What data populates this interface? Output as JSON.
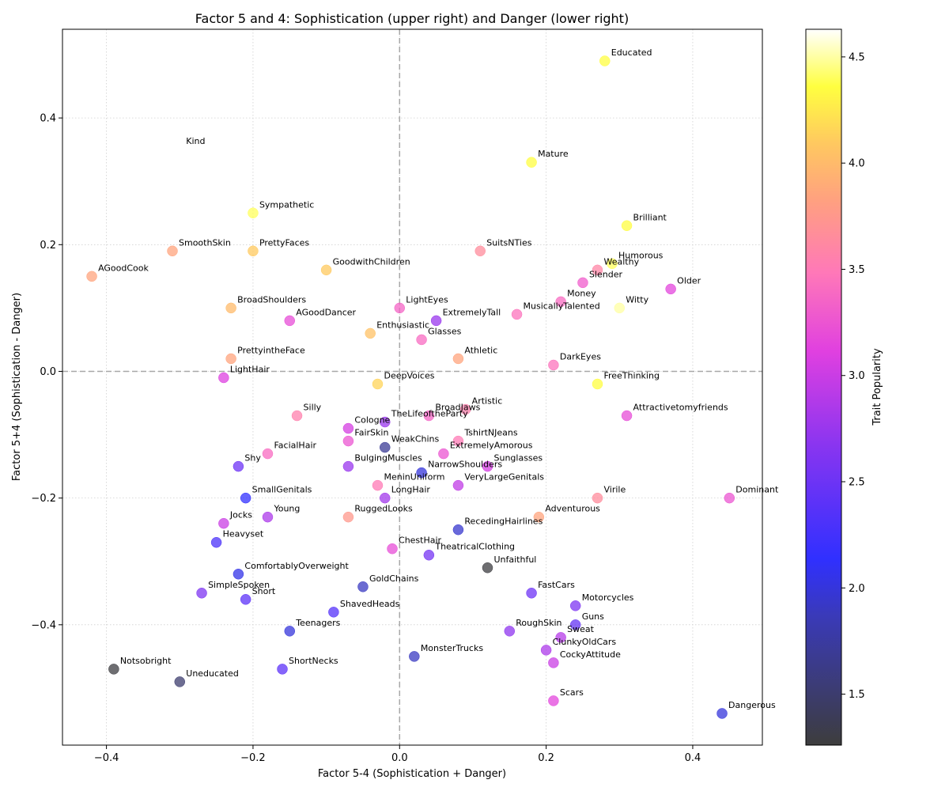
{
  "chart_data": {
    "type": "scatter",
    "title": "Factor 5 and 4: Sophistication (upper right) and Danger (lower right)",
    "xlabel": "Factor 5-4 (Sophistication + Danger)",
    "ylabel": "Factor 5+4 (Sophistication - Danger)",
    "xlim": [
      -0.46,
      0.495
    ],
    "ylim": [
      -0.59,
      0.54
    ],
    "xticks": [
      -0.4,
      -0.2,
      0.0,
      0.2,
      0.4
    ],
    "yticks": [
      -0.4,
      -0.2,
      0.0,
      0.2,
      0.4
    ],
    "xtick_labels": [
      "−0.4",
      "−0.2",
      "0.0",
      "0.2",
      "0.4"
    ],
    "ytick_labels": [
      "−0.4",
      "−0.2",
      "0.0",
      "0.2",
      "0.4"
    ],
    "grid": true,
    "reference_lines": {
      "x": 0,
      "y": 0
    },
    "colorbar": {
      "label": "Trait Popularity",
      "range": [
        1.26,
        4.63
      ],
      "ticks": [
        1.5,
        2.0,
        2.5,
        3.0,
        3.5,
        4.0,
        4.5
      ],
      "tick_labels": [
        "1.5",
        "2.0",
        "2.5",
        "3.0",
        "3.5",
        "4.0",
        "4.5"
      ],
      "colormap": "gnuplot2-like: black, blue, purple, magenta, salmon, orange, yellow, white"
    },
    "points": [
      {
        "label": "Educated",
        "x": 0.28,
        "y": 0.49,
        "c": 4.35
      },
      {
        "label": "Kind",
        "x": -0.3,
        "y": 0.35,
        "c": 4.63
      },
      {
        "label": "Mature",
        "x": 0.18,
        "y": 0.33,
        "c": 4.35
      },
      {
        "label": "Sympathetic",
        "x": -0.2,
        "y": 0.25,
        "c": 4.4
      },
      {
        "label": "Brilliant",
        "x": 0.31,
        "y": 0.23,
        "c": 4.35
      },
      {
        "label": "SmoothSkin",
        "x": -0.31,
        "y": 0.19,
        "c": 3.85
      },
      {
        "label": "PrettyFaces",
        "x": -0.2,
        "y": 0.19,
        "c": 4.1
      },
      {
        "label": "SuitsNTies",
        "x": 0.11,
        "y": 0.19,
        "c": 3.65
      },
      {
        "label": "Humorous",
        "x": 0.29,
        "y": 0.17,
        "c": 4.4
      },
      {
        "label": "Wealthy",
        "x": 0.27,
        "y": 0.16,
        "c": 3.6
      },
      {
        "label": "GoodwithChildren",
        "x": -0.1,
        "y": 0.16,
        "c": 4.1
      },
      {
        "label": "AGoodCook",
        "x": -0.42,
        "y": 0.15,
        "c": 3.85
      },
      {
        "label": "Slender",
        "x": 0.25,
        "y": 0.14,
        "c": 3.3
      },
      {
        "label": "Older",
        "x": 0.37,
        "y": 0.13,
        "c": 3.15
      },
      {
        "label": "Money",
        "x": 0.22,
        "y": 0.11,
        "c": 3.4
      },
      {
        "label": "Witty",
        "x": 0.3,
        "y": 0.1,
        "c": 4.5
      },
      {
        "label": "BroadShoulders",
        "x": -0.23,
        "y": 0.1,
        "c": 4.0
      },
      {
        "label": "LightEyes",
        "x": 0.0,
        "y": 0.1,
        "c": 3.35
      },
      {
        "label": "MusicallyTalented",
        "x": 0.16,
        "y": 0.09,
        "c": 3.45
      },
      {
        "label": "AGoodDancer",
        "x": -0.15,
        "y": 0.08,
        "c": 3.2
      },
      {
        "label": "ExtremelyTall",
        "x": 0.05,
        "y": 0.08,
        "c": 2.75
      },
      {
        "label": "Enthusiastic",
        "x": -0.04,
        "y": 0.06,
        "c": 4.05
      },
      {
        "label": "Glasses",
        "x": 0.03,
        "y": 0.05,
        "c": 3.4
      },
      {
        "label": "PrettyintheFace",
        "x": -0.23,
        "y": 0.02,
        "c": 3.85
      },
      {
        "label": "Athletic",
        "x": 0.08,
        "y": 0.02,
        "c": 3.85
      },
      {
        "label": "DarkEyes",
        "x": 0.21,
        "y": 0.01,
        "c": 3.45
      },
      {
        "label": "LightHair",
        "x": -0.24,
        "y": -0.01,
        "c": 3.1
      },
      {
        "label": "DeepVoices",
        "x": -0.03,
        "y": -0.02,
        "c": 4.15
      },
      {
        "label": "FreeThinking",
        "x": 0.27,
        "y": -0.02,
        "c": 4.35
      },
      {
        "label": "Artistic",
        "x": 0.09,
        "y": -0.06,
        "c": 3.55
      },
      {
        "label": "Silly",
        "x": -0.14,
        "y": -0.07,
        "c": 3.55
      },
      {
        "label": "BroadJaws",
        "x": 0.04,
        "y": -0.07,
        "c": 3.35
      },
      {
        "label": "Attractivetomyfriends",
        "x": 0.31,
        "y": -0.07,
        "c": 3.2
      },
      {
        "label": "TheLifeoftheParty",
        "x": -0.02,
        "y": -0.08,
        "c": 2.75
      },
      {
        "label": "Cologne",
        "x": -0.07,
        "y": -0.09,
        "c": 3.05
      },
      {
        "label": "FairSkin",
        "x": -0.07,
        "y": -0.11,
        "c": 3.25
      },
      {
        "label": "TshirtNJeans",
        "x": 0.08,
        "y": -0.11,
        "c": 3.5
      },
      {
        "label": "WeakChins",
        "x": -0.02,
        "y": -0.12,
        "c": 1.7
      },
      {
        "label": "FacialHair",
        "x": -0.18,
        "y": -0.13,
        "c": 3.4
      },
      {
        "label": "ExtremelyAmorous",
        "x": 0.06,
        "y": -0.13,
        "c": 3.25
      },
      {
        "label": "Shy",
        "x": -0.22,
        "y": -0.15,
        "c": 2.5
      },
      {
        "label": "BulgingMuscles",
        "x": -0.07,
        "y": -0.15,
        "c": 2.75
      },
      {
        "label": "Sunglasses",
        "x": 0.12,
        "y": -0.15,
        "c": 3.05
      },
      {
        "label": "NarrowShoulders",
        "x": 0.03,
        "y": -0.16,
        "c": 2.0
      },
      {
        "label": "MeninUniform",
        "x": -0.03,
        "y": -0.18,
        "c": 3.5
      },
      {
        "label": "VeryLargeGenitals",
        "x": 0.08,
        "y": -0.18,
        "c": 2.95
      },
      {
        "label": "SmallGenitals",
        "x": -0.21,
        "y": -0.2,
        "c": 2.15
      },
      {
        "label": "LongHair",
        "x": -0.02,
        "y": -0.2,
        "c": 2.8
      },
      {
        "label": "Virile",
        "x": 0.27,
        "y": -0.2,
        "c": 3.65
      },
      {
        "label": "Dominant",
        "x": 0.45,
        "y": -0.2,
        "c": 3.25
      },
      {
        "label": "Young",
        "x": -0.18,
        "y": -0.23,
        "c": 2.85
      },
      {
        "label": "RuggedLooks",
        "x": -0.07,
        "y": -0.23,
        "c": 3.75
      },
      {
        "label": "Adventurous",
        "x": 0.19,
        "y": -0.23,
        "c": 3.85
      },
      {
        "label": "Jocks",
        "x": -0.24,
        "y": -0.24,
        "c": 3.0
      },
      {
        "label": "RecedingHairlines",
        "x": 0.08,
        "y": -0.25,
        "c": 1.95
      },
      {
        "label": "Heavyset",
        "x": -0.25,
        "y": -0.27,
        "c": 2.3
      },
      {
        "label": "ChestHair",
        "x": -0.01,
        "y": -0.28,
        "c": 3.2
      },
      {
        "label": "TheatricalClothing",
        "x": 0.04,
        "y": -0.29,
        "c": 2.55
      },
      {
        "label": "Unfaithful",
        "x": 0.12,
        "y": -0.31,
        "c": 1.28
      },
      {
        "label": "ComfortablyOverweight",
        "x": -0.22,
        "y": -0.32,
        "c": 2.05
      },
      {
        "label": "GoldChains",
        "x": -0.05,
        "y": -0.34,
        "c": 1.9
      },
      {
        "label": "SimpleSpoken",
        "x": -0.27,
        "y": -0.35,
        "c": 2.6
      },
      {
        "label": "FastCars",
        "x": 0.18,
        "y": -0.35,
        "c": 2.5
      },
      {
        "label": "Short",
        "x": -0.21,
        "y": -0.36,
        "c": 2.4
      },
      {
        "label": "Motorcycles",
        "x": 0.24,
        "y": -0.37,
        "c": 2.6
      },
      {
        "label": "ShavedHeads",
        "x": -0.09,
        "y": -0.38,
        "c": 2.35
      },
      {
        "label": "Guns",
        "x": 0.24,
        "y": -0.4,
        "c": 2.45
      },
      {
        "label": "Teenagers",
        "x": -0.15,
        "y": -0.41,
        "c": 2.0
      },
      {
        "label": "RoughSkin",
        "x": 0.15,
        "y": -0.41,
        "c": 2.7
      },
      {
        "label": "Sweat",
        "x": 0.22,
        "y": -0.42,
        "c": 2.9
      },
      {
        "label": "ClunkyOldCars",
        "x": 0.2,
        "y": -0.44,
        "c": 2.85
      },
      {
        "label": "MonsterTrucks",
        "x": 0.02,
        "y": -0.45,
        "c": 1.9
      },
      {
        "label": "CockyAttitude",
        "x": 0.21,
        "y": -0.46,
        "c": 3.0
      },
      {
        "label": "Notsobright",
        "x": -0.39,
        "y": -0.47,
        "c": 1.28
      },
      {
        "label": "ShortNecks",
        "x": -0.16,
        "y": -0.47,
        "c": 2.4
      },
      {
        "label": "Uneducated",
        "x": -0.3,
        "y": -0.49,
        "c": 1.5
      },
      {
        "label": "Scars",
        "x": 0.21,
        "y": -0.52,
        "c": 3.15
      },
      {
        "label": "Dangerous",
        "x": 0.44,
        "y": -0.54,
        "c": 2.0
      }
    ]
  }
}
